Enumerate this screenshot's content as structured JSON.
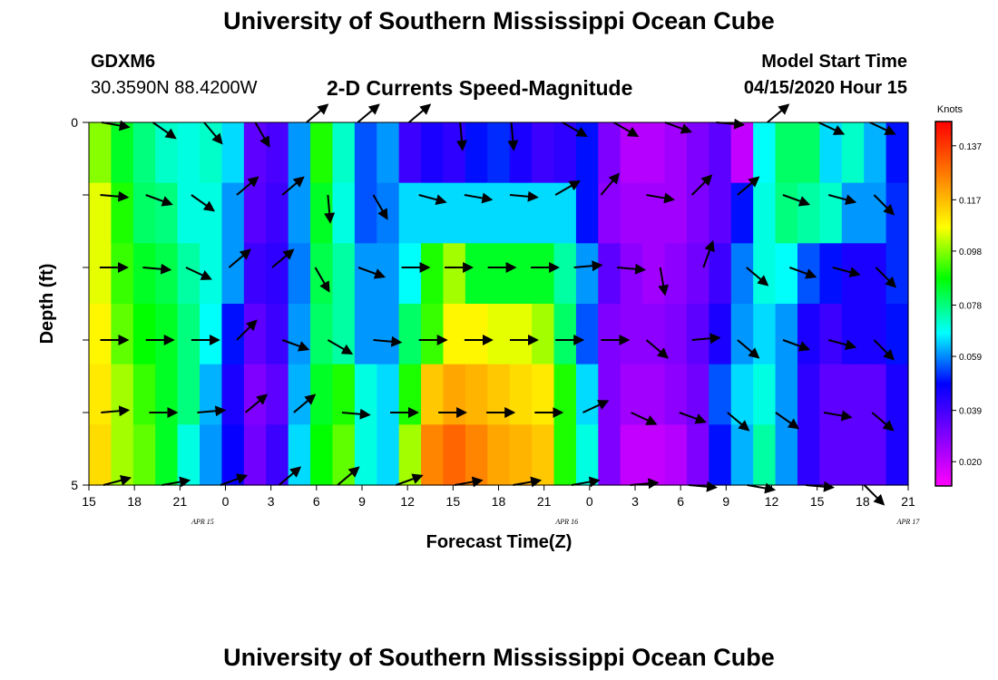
{
  "title": "University of Southern Mississippi Ocean Cube",
  "footer_title": "University of Southern Mississippi Ocean Cube",
  "station": {
    "id": "GDXM6",
    "coords": "30.3590N 88.4200W"
  },
  "subtitle": "2-D Currents Speed-Magnitude",
  "model_start": {
    "label": "Model Start Time",
    "value": "04/15/2020 Hour 15"
  },
  "chart_data": {
    "type": "heatmap",
    "xlabel": "Forecast Time(Z)",
    "ylabel": "Depth (ft)",
    "x_tick_labels": [
      "15",
      "18",
      "21",
      "0",
      "3",
      "6",
      "9",
      "12",
      "15",
      "18",
      "21",
      "0",
      "3",
      "6",
      "9",
      "12",
      "15",
      "18",
      "21"
    ],
    "date_labels": [
      "APR 15",
      "APR 16",
      "APR 17"
    ],
    "y_tick_labels": [
      "0",
      "5"
    ],
    "ylim": [
      0,
      5
    ],
    "colorbar": {
      "unit": "Knots",
      "ticks": [
        "0.137",
        "0.117",
        "0.098",
        "0.078",
        "0.059",
        "0.039",
        "0.020"
      ],
      "range": [
        0.011,
        0.146
      ]
    },
    "speed_rows": [
      [
        0.098,
        0.085,
        0.078,
        0.072,
        0.07,
        0.072,
        0.065,
        0.035,
        0.038,
        0.06,
        0.09,
        0.072,
        0.055,
        0.06,
        0.04,
        0.045,
        0.042,
        0.05,
        0.052,
        0.045,
        0.04,
        0.042,
        0.05,
        0.03,
        0.022,
        0.022,
        0.025,
        0.03,
        0.035,
        0.02,
        0.068,
        0.08,
        0.08,
        0.065,
        0.072,
        0.062,
        0.05
      ],
      [
        0.105,
        0.09,
        0.08,
        0.078,
        0.07,
        0.07,
        0.06,
        0.036,
        0.04,
        0.06,
        0.085,
        0.07,
        0.055,
        0.058,
        0.065,
        0.065,
        0.065,
        0.065,
        0.065,
        0.065,
        0.065,
        0.065,
        0.05,
        0.028,
        0.025,
        0.025,
        0.025,
        0.03,
        0.035,
        0.05,
        0.07,
        0.078,
        0.075,
        0.072,
        0.06,
        0.06,
        0.052
      ],
      [
        0.105,
        0.092,
        0.085,
        0.082,
        0.075,
        0.07,
        0.06,
        0.04,
        0.042,
        0.058,
        0.082,
        0.075,
        0.06,
        0.06,
        0.068,
        0.09,
        0.1,
        0.085,
        0.085,
        0.085,
        0.085,
        0.075,
        0.06,
        0.035,
        0.028,
        0.025,
        0.028,
        0.032,
        0.04,
        0.058,
        0.07,
        0.068,
        0.055,
        0.05,
        0.045,
        0.045,
        0.052
      ],
      [
        0.108,
        0.095,
        0.088,
        0.085,
        0.078,
        0.068,
        0.05,
        0.035,
        0.04,
        0.06,
        0.08,
        0.075,
        0.06,
        0.06,
        0.08,
        0.092,
        0.108,
        0.108,
        0.105,
        0.105,
        0.1,
        0.08,
        0.055,
        0.03,
        0.028,
        0.028,
        0.03,
        0.035,
        0.045,
        0.06,
        0.065,
        0.06,
        0.045,
        0.04,
        0.045,
        0.045,
        0.05
      ],
      [
        0.11,
        0.1,
        0.092,
        0.085,
        0.078,
        0.062,
        0.045,
        0.03,
        0.035,
        0.062,
        0.085,
        0.09,
        0.07,
        0.065,
        0.09,
        0.115,
        0.12,
        0.118,
        0.115,
        0.112,
        0.11,
        0.09,
        0.065,
        0.03,
        0.025,
        0.025,
        0.028,
        0.032,
        0.055,
        0.065,
        0.07,
        0.06,
        0.042,
        0.035,
        0.035,
        0.035,
        0.045
      ],
      [
        0.112,
        0.1,
        0.095,
        0.085,
        0.07,
        0.06,
        0.048,
        0.032,
        0.04,
        0.065,
        0.088,
        0.095,
        0.07,
        0.065,
        0.1,
        0.125,
        0.13,
        0.125,
        0.12,
        0.118,
        0.115,
        0.09,
        0.07,
        0.03,
        0.02,
        0.02,
        0.022,
        0.03,
        0.05,
        0.062,
        0.075,
        0.06,
        0.042,
        0.035,
        0.035,
        0.035,
        0.045
      ]
    ],
    "vector_angles_deg": [
      [
        10,
        35,
        50,
        60,
        -40,
        -40,
        -40,
        85,
        85,
        30,
        30,
        20,
        5,
        320,
        25,
        25
      ],
      [
        5,
        20,
        35,
        -40,
        -40,
        85,
        60,
        15,
        10,
        5,
        -30,
        -50,
        10,
        -45,
        -40,
        20,
        15,
        45
      ],
      [
        0,
        5,
        25,
        -40,
        -40,
        60,
        20,
        0,
        0,
        0,
        0,
        -5,
        5,
        80,
        -70,
        40,
        20,
        15,
        45
      ],
      [
        0,
        0,
        0,
        -45,
        20,
        30,
        5,
        0,
        0,
        0,
        0,
        0,
        40,
        -5,
        40,
        20,
        15,
        45
      ],
      [
        -5,
        0,
        -5,
        -40,
        -40,
        5,
        0,
        0,
        0,
        0,
        -25,
        25,
        20,
        40,
        35,
        10,
        40
      ],
      [
        -15,
        -10,
        -20,
        -40,
        -40,
        -20,
        -10,
        -10,
        -10,
        -5,
        5,
        10,
        5,
        45
      ]
    ]
  }
}
